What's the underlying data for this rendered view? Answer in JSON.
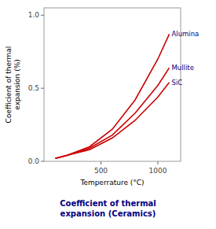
{
  "chart_data": {
    "type": "line",
    "title": "Coefficient of thermal\nexpansion (Ceramics)",
    "x_label": "Temperrature (°C)",
    "y_label": "Coefficient of thermal\nexpansion (%)",
    "x": [
      100,
      200,
      400,
      600,
      800,
      1000,
      1100
    ],
    "series": [
      {
        "name": "Alumina",
        "color": "#cc0000",
        "values": [
          0.02,
          0.04,
          0.1,
          0.22,
          0.42,
          0.7,
          0.87
        ]
      },
      {
        "name": "Mullite",
        "color": "#cc0000",
        "values": [
          0.02,
          0.04,
          0.09,
          0.18,
          0.33,
          0.52,
          0.64
        ]
      },
      {
        "name": "SiC",
        "color": "#cc0000",
        "values": [
          0.02,
          0.04,
          0.08,
          0.16,
          0.28,
          0.44,
          0.54
        ]
      }
    ],
    "xlim": [
      0,
      1200
    ],
    "ylim": [
      0,
      1.05
    ],
    "xticks": [
      500,
      1000
    ],
    "yticks": [
      {
        "value": 0,
        "label": "0.0"
      },
      0.5,
      {
        "value": 1.0,
        "label": "1.0"
      }
    ],
    "grid": false
  }
}
